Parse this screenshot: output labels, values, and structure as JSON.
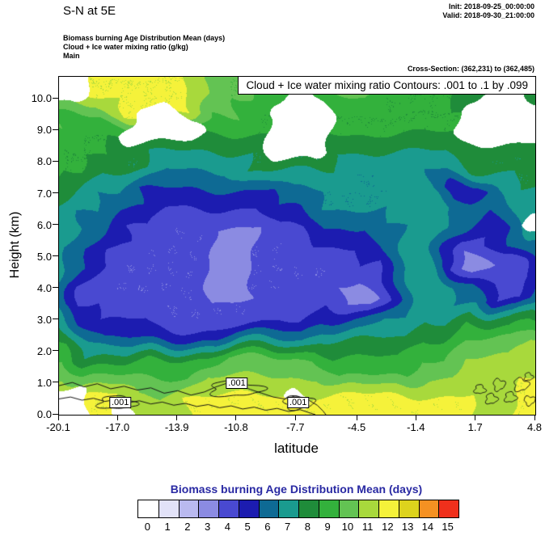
{
  "header": {
    "title": "S-N at 5E",
    "init": "Init: 2018-09-25_00:00:00",
    "valid": "Valid: 2018-09-30_21:00:00",
    "subtitle1": "Biomass burning Age Distribution Mean  (days)",
    "subtitle2": "Cloud + Ice water mixing ratio  (g/kg)",
    "subtitle3": "Main",
    "cross_section": "Cross-Section: (362,231) to (362,485)"
  },
  "plot": {
    "inner_title": "Cloud + Ice water mixing ratio Contours: .001 to .1 by .099",
    "xlabel": "latitude",
    "ylabel": "Height (km)",
    "x_ticks": [
      "-20.1",
      "-17.0",
      "-13.9",
      "-10.8",
      "-7.7",
      "-4.5",
      "-1.4",
      "1.7",
      "4.8"
    ],
    "y_ticks": [
      "0.0",
      "1.0",
      "2.0",
      "3.0",
      "4.0",
      "5.0",
      "6.0",
      "7.0",
      "8.0",
      "9.0",
      "10.0"
    ]
  },
  "colorbar": {
    "title": "Biomass burning Age Distribution Mean  (days)",
    "title_color": "#2929a3",
    "labels": [
      "0",
      "1",
      "2",
      "3",
      "4",
      "5",
      "6",
      "7",
      "8",
      "9",
      "10",
      "11",
      "12",
      "13",
      "14",
      "15"
    ],
    "colors": [
      "#ffffff",
      "#e2e2f8",
      "#b9b9ef",
      "#8b8be2",
      "#4949d1",
      "#1c1cb0",
      "#0e6a94",
      "#1a9b8f",
      "#1f8c3a",
      "#33b13c",
      "#63c353",
      "#a8d93c",
      "#f5f23a",
      "#ddd31d",
      "#f59122",
      "#f0301c"
    ]
  },
  "chart_data": {
    "type": "heatmap",
    "title": "Biomass burning Age Distribution Mean (days), S-N cross-section at 5E",
    "xlabel": "latitude",
    "ylabel": "Height (km)",
    "x_range": [
      -20.1,
      4.8
    ],
    "y_range": [
      0,
      10.7
    ],
    "legend_position": "bottom",
    "levels": [
      0,
      1,
      2,
      3,
      4,
      5,
      6,
      7,
      8,
      9,
      10,
      11,
      12,
      13,
      14,
      15
    ],
    "grid_rows_order": "top (10.7 km) to bottom (0 km)",
    "grid_cols_order": "left (-20.1 lat) to right (4.8 lat)",
    "age_grid": [
      [
        12,
        12,
        12,
        12,
        12,
        12,
        12,
        11,
        10,
        10,
        10,
        9,
        10,
        10,
        11,
        9,
        9,
        9,
        9,
        8,
        8,
        8,
        8
      ],
      [
        12,
        12,
        12,
        12,
        12,
        12,
        12,
        11,
        10,
        10,
        9,
        10,
        10,
        10,
        10,
        9,
        9,
        9,
        9,
        8,
        8,
        8,
        8
      ],
      [
        10,
        10,
        10,
        12,
        12,
        12,
        12,
        10,
        10,
        9,
        9,
        9,
        9,
        9,
        9,
        9,
        9,
        9,
        9,
        9,
        9,
        9,
        9
      ],
      [
        10,
        9,
        9,
        9,
        9,
        9,
        9,
        9,
        9,
        9,
        9,
        9,
        9,
        9,
        9,
        9,
        9,
        9,
        9,
        9,
        9,
        9,
        9
      ],
      [
        9,
        9,
        9,
        8,
        8,
        8,
        8,
        8,
        8,
        8,
        8,
        8,
        8,
        8,
        8,
        8,
        8,
        8,
        8,
        9,
        8,
        8,
        8
      ],
      [
        9,
        9,
        8,
        8,
        8,
        7,
        7,
        7,
        7,
        8,
        8,
        8,
        8,
        8,
        7,
        7,
        7,
        7,
        7,
        8,
        8,
        8,
        8
      ],
      [
        9,
        8,
        7,
        7,
        6,
        6,
        6,
        6,
        6,
        6,
        6,
        7,
        7,
        7,
        7,
        7,
        8,
        7,
        5,
        5,
        7,
        8,
        8
      ],
      [
        8,
        7,
        7,
        6,
        6,
        5,
        5,
        5,
        5,
        5,
        6,
        6,
        7,
        7,
        7,
        7,
        8,
        8,
        7,
        7,
        6,
        7,
        8
      ],
      [
        8,
        7,
        6,
        5,
        5,
        4,
        4,
        4,
        4,
        4,
        5,
        5,
        6,
        6,
        6,
        7,
        7,
        8,
        7,
        6,
        5,
        6,
        8
      ],
      [
        7,
        6,
        5,
        5,
        4,
        4,
        4,
        4,
        3,
        4,
        4,
        4,
        5,
        5,
        5,
        6,
        7,
        8,
        6,
        4,
        5,
        6,
        7
      ],
      [
        7,
        6,
        5,
        4,
        4,
        4,
        4,
        4,
        4,
        4,
        4,
        4,
        4,
        4,
        5,
        5,
        7,
        8,
        5,
        3,
        4,
        4,
        6
      ],
      [
        7,
        5,
        4,
        4,
        4,
        4,
        4,
        4,
        3,
        4,
        4,
        4,
        4,
        4,
        4,
        5,
        7,
        8,
        7,
        6,
        5,
        4,
        6
      ],
      [
        7,
        5,
        5,
        4,
        4,
        4,
        4,
        4,
        4,
        4,
        4,
        4,
        5,
        4,
        3,
        5,
        7,
        8,
        7,
        7,
        5,
        5,
        7
      ],
      [
        8,
        6,
        5,
        5,
        5,
        4,
        4,
        4,
        4,
        4,
        5,
        5,
        6,
        6,
        6,
        7,
        7,
        8,
        8,
        9,
        8,
        8,
        9
      ],
      [
        9,
        7,
        6,
        6,
        6,
        6,
        6,
        6,
        7,
        7,
        7,
        7,
        8,
        8,
        8,
        8,
        8,
        9,
        9,
        10,
        10,
        10,
        11
      ],
      [
        10,
        8,
        8,
        8,
        9,
        9,
        9,
        9,
        10,
        10,
        10,
        10,
        10,
        9,
        9,
        9,
        9,
        10,
        10,
        11,
        11,
        11,
        12
      ],
      [
        11,
        10,
        10,
        10,
        10,
        10,
        10,
        11,
        11,
        11,
        11,
        11,
        11,
        10,
        10,
        10,
        10,
        11,
        11,
        12,
        12,
        12,
        12
      ],
      [
        12,
        12,
        12,
        12,
        11,
        11,
        12,
        12,
        12,
        12,
        12,
        12,
        12,
        12,
        12,
        12,
        12,
        12,
        12,
        12,
        11,
        12,
        12
      ],
      [
        12,
        12,
        12,
        12,
        12,
        12,
        12,
        12,
        12,
        12,
        12,
        12,
        12,
        12,
        12,
        12,
        12,
        12,
        12,
        12,
        12,
        12,
        12
      ]
    ],
    "cloud_white_mask": [
      [
        1,
        1,
        0,
        0,
        0,
        0,
        0,
        0,
        0,
        0,
        0,
        0,
        0,
        0,
        0,
        0,
        0,
        0,
        0,
        0,
        0,
        0,
        0
      ],
      [
        1,
        1,
        0,
        0,
        0,
        0,
        0,
        0,
        0,
        0,
        0,
        1,
        0,
        0,
        0,
        0,
        0,
        0,
        0,
        0,
        1,
        1,
        0
      ],
      [
        0,
        0,
        0,
        0,
        1,
        1,
        0,
        0,
        0,
        0,
        1,
        1,
        1,
        0,
        0,
        0,
        0,
        0,
        0,
        1,
        1,
        1,
        1
      ],
      [
        0,
        0,
        0,
        1,
        1,
        1,
        1,
        0,
        0,
        0,
        1,
        1,
        1,
        0,
        0,
        0,
        0,
        0,
        0,
        1,
        1,
        1,
        1
      ],
      [
        0,
        0,
        0,
        0,
        0,
        0,
        0,
        0,
        0,
        0,
        1,
        1,
        1,
        0,
        0,
        0,
        0,
        0,
        0,
        0,
        0,
        0,
        0
      ],
      [
        0,
        0,
        0,
        0,
        0,
        0,
        0,
        0,
        0,
        0,
        0,
        0,
        0,
        0,
        0,
        0,
        0,
        0,
        0,
        0,
        0,
        0,
        0
      ],
      [
        0,
        0,
        0,
        0,
        0,
        0,
        0,
        0,
        0,
        0,
        0,
        0,
        0,
        0,
        0,
        0,
        0,
        0,
        0,
        0,
        0,
        0,
        0
      ],
      [
        0,
        0,
        0,
        0,
        0,
        0,
        0,
        0,
        0,
        0,
        0,
        0,
        0,
        0,
        0,
        0,
        0,
        0,
        0,
        0,
        0,
        0,
        0
      ],
      [
        0,
        0,
        0,
        0,
        0,
        0,
        0,
        0,
        0,
        0,
        0,
        0,
        0,
        0,
        0,
        0,
        0,
        0,
        0,
        0,
        0,
        0,
        1
      ],
      [
        0,
        0,
        0,
        0,
        0,
        0,
        0,
        0,
        0,
        0,
        0,
        0,
        0,
        0,
        0,
        0,
        0,
        0,
        0,
        0,
        0,
        0,
        0
      ],
      [
        0,
        0,
        0,
        0,
        0,
        0,
        0,
        0,
        0,
        0,
        0,
        0,
        0,
        0,
        0,
        0,
        0,
        0,
        0,
        0,
        0,
        0,
        0
      ],
      [
        0,
        0,
        0,
        0,
        0,
        0,
        0,
        0,
        0,
        0,
        0,
        0,
        0,
        0,
        0,
        0,
        0,
        0,
        0,
        0,
        0,
        0,
        0
      ],
      [
        0,
        0,
        0,
        0,
        0,
        0,
        0,
        0,
        0,
        0,
        0,
        0,
        0,
        0,
        0,
        0,
        0,
        0,
        0,
        0,
        0,
        0,
        0
      ],
      [
        0,
        0,
        0,
        0,
        0,
        0,
        0,
        0,
        0,
        0,
        0,
        0,
        0,
        0,
        0,
        0,
        0,
        0,
        0,
        0,
        0,
        0,
        0
      ],
      [
        0,
        0,
        0,
        0,
        0,
        0,
        0,
        0,
        0,
        0,
        0,
        0,
        0,
        0,
        0,
        0,
        0,
        0,
        0,
        0,
        0,
        0,
        0
      ],
      [
        0,
        0,
        0,
        0,
        0,
        0,
        0,
        0,
        0,
        0,
        0,
        0,
        0,
        0,
        0,
        0,
        0,
        0,
        0,
        0,
        0,
        0,
        0
      ],
      [
        0,
        0,
        0,
        0,
        0,
        0,
        0,
        0,
        0,
        0,
        0,
        0,
        0,
        0,
        0,
        0,
        0,
        0,
        0,
        0,
        0,
        0,
        0
      ],
      [
        1,
        1,
        0,
        0,
        0,
        0,
        0,
        0,
        0,
        0,
        0,
        1,
        0,
        0,
        0,
        0,
        0,
        0,
        0,
        0,
        0,
        0,
        0
      ],
      [
        1,
        1,
        0,
        1,
        0,
        0,
        0,
        0,
        0,
        0,
        0,
        0,
        0,
        0,
        0,
        0,
        0,
        0,
        0,
        0,
        0,
        0,
        0
      ]
    ],
    "cloud_contours": {
      "field": "Cloud + Ice water mixing ratio (g/kg)",
      "min": 0.001,
      "max": 0.1,
      "interval": 0.099,
      "labels": [
        {
          "text": ".001",
          "lat": -16.9,
          "height": 0.38
        },
        {
          "text": ".001",
          "lat": -10.8,
          "height": 1.0
        },
        {
          "text": ".001",
          "lat": -7.6,
          "height": 0.38
        }
      ]
    }
  }
}
